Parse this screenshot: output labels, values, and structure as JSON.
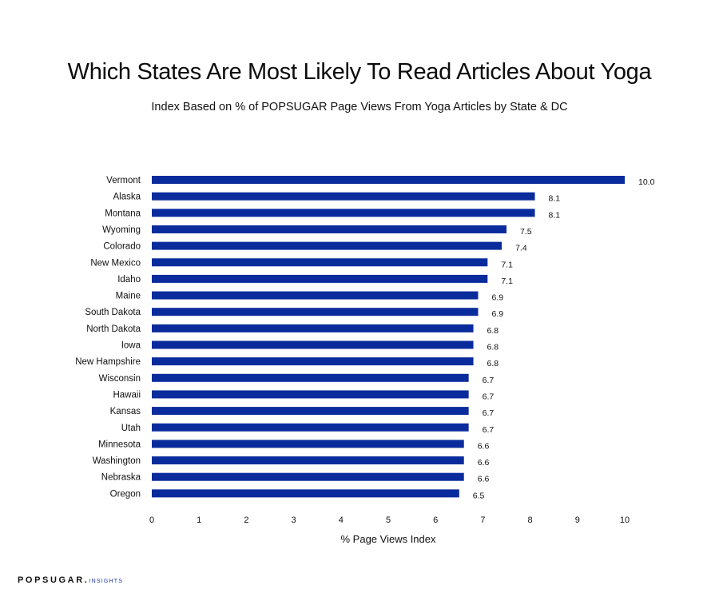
{
  "chart_data": {
    "type": "bar",
    "orientation": "horizontal",
    "title": "Which States Are Most Likely To Read Articles About Yoga",
    "subtitle": "Index Based on % of POPSUGAR Page Views From Yoga Articles by State & DC",
    "xlabel": "% Page Views Index",
    "ylabel": "",
    "xlim": [
      0,
      10
    ],
    "xticks": [
      "0",
      "1",
      "2",
      "3",
      "4",
      "5",
      "6",
      "7",
      "8",
      "9",
      "10"
    ],
    "grid": false,
    "bar_color": "#0a2b9c",
    "categories": [
      "Vermont",
      "Alaska",
      "Montana",
      "Wyoming",
      "Colorado",
      "New Mexico",
      "Idaho",
      "Maine",
      "South Dakota",
      "North Dakota",
      "Iowa",
      "New Hampshire",
      "Wisconsin",
      "Hawaii",
      "Kansas",
      "Utah",
      "Minnesota",
      "Washington",
      "Nebraska",
      "Oregon"
    ],
    "values": [
      10.0,
      8.1,
      8.1,
      7.5,
      7.4,
      7.1,
      7.1,
      6.9,
      6.9,
      6.8,
      6.8,
      6.8,
      6.7,
      6.7,
      6.7,
      6.7,
      6.6,
      6.6,
      6.6,
      6.5
    ],
    "value_labels": [
      "10.0",
      "8.1",
      "8.1",
      "7.5",
      "7.4",
      "7.1",
      "7.1",
      "6.9",
      "6.9",
      "6.8",
      "6.8",
      "6.8",
      "6.7",
      "6.7",
      "6.7",
      "6.7",
      "6.6",
      "6.6",
      "6.6",
      "6.5"
    ]
  },
  "footer": {
    "brand": "POPSUGAR",
    "brand_sub": "INSIGHTS"
  }
}
